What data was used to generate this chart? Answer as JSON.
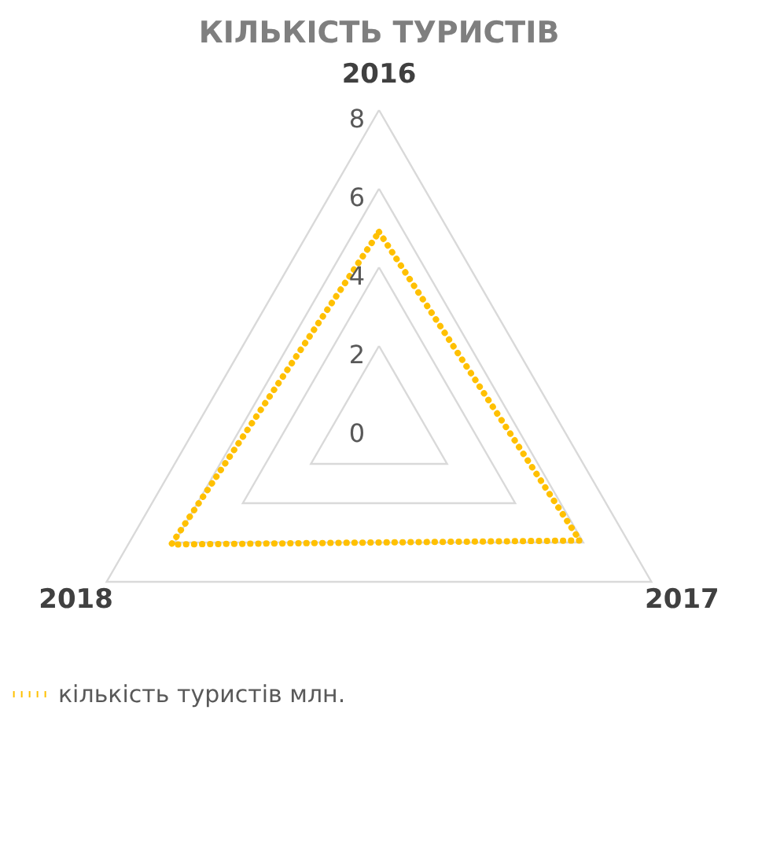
{
  "chart_data": {
    "type": "radar",
    "title": "КІЛЬКІСТЬ ТУРИСТІВ",
    "categories": [
      "2016",
      "2017",
      "2018"
    ],
    "series": [
      {
        "name": "кількість туристів млн.",
        "color": "#ffc000",
        "values": [
          4.9,
          5.9,
          6.1
        ]
      }
    ],
    "ylim": [
      0,
      8
    ],
    "yticks": [
      0,
      2,
      4,
      6,
      8
    ],
    "grid": true,
    "legend": "bottom",
    "marker": "none",
    "line_style": "dotted"
  }
}
